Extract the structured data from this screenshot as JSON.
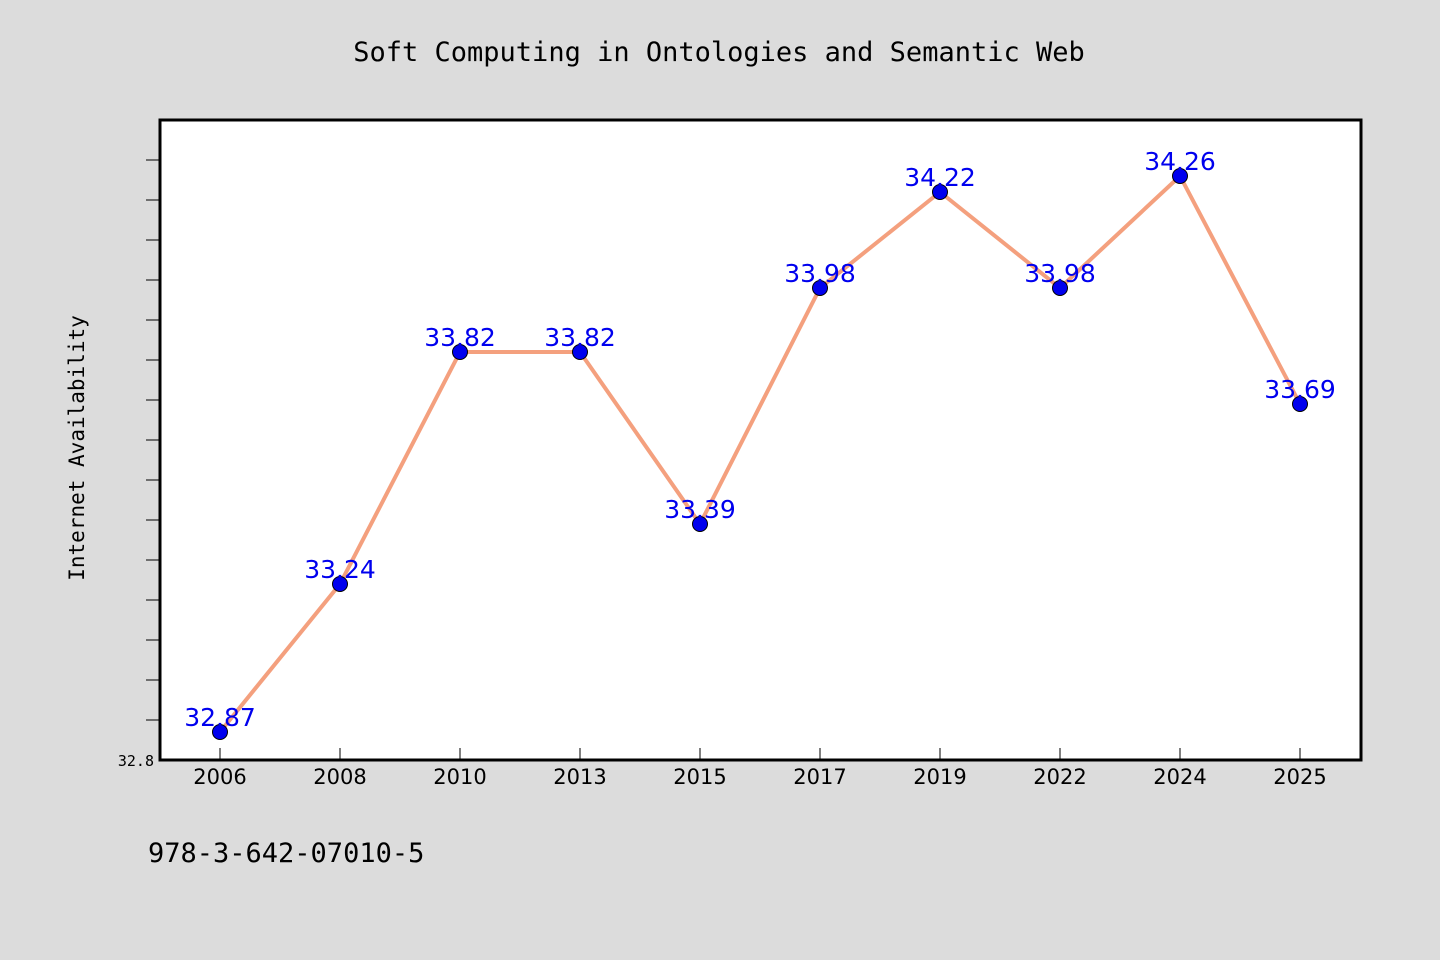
{
  "chart_data": {
    "type": "line",
    "title": "Soft Computing in Ontologies and Semantic Web",
    "xlabel": "",
    "ylabel": "Internet Availability",
    "categories": [
      "2006",
      "2008",
      "2010",
      "2013",
      "2015",
      "2017",
      "2019",
      "2022",
      "2024",
      "2025"
    ],
    "series": [
      {
        "values": [
          32.87,
          33.24,
          33.82,
          33.82,
          33.39,
          33.98,
          34.22,
          33.98,
          34.26,
          33.69
        ]
      }
    ],
    "data_labels": [
      "32.87",
      "33.24",
      "33.82",
      "33.82",
      "33.39",
      "33.98",
      "34.22",
      "33.98",
      "34.26",
      "33.69"
    ],
    "ylim": [
      32.8,
      34.4
    ],
    "y_ticks_labeled": [
      "32.8"
    ],
    "y_minor_tick_step": 0.1,
    "grid": false,
    "line_color": "#f4a07e",
    "marker_color": "#0000ee",
    "label_color": "#0000ee",
    "background_color": "#dcdcdc",
    "plot_background": "#ffffff"
  },
  "footer": {
    "isbn": "978-3-642-07010-5"
  }
}
